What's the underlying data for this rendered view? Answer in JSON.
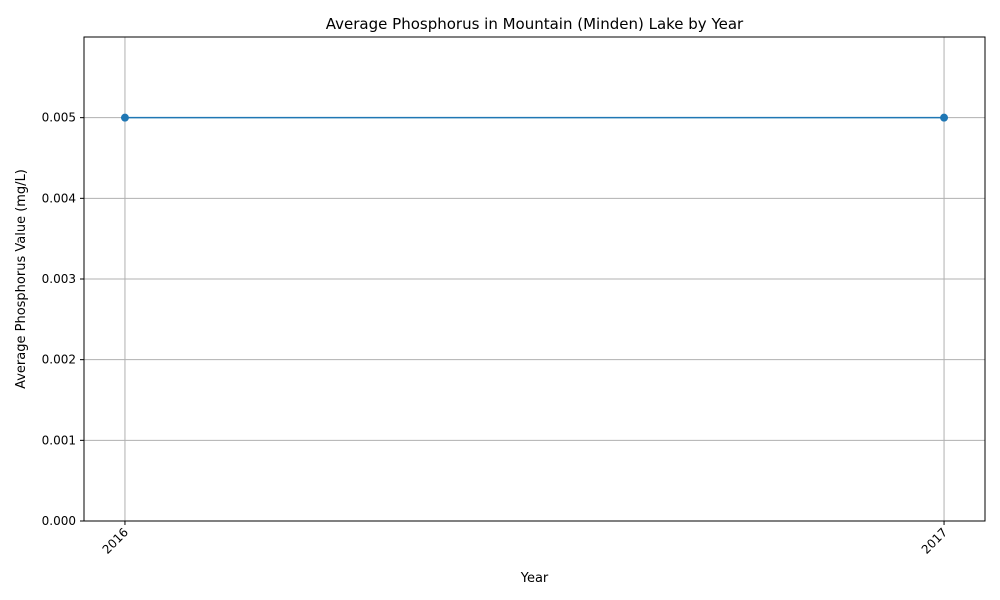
{
  "chart_data": {
    "type": "line",
    "title": "Average Phosphorus in Mountain (Minden) Lake  by Year",
    "xlabel": "Year",
    "ylabel": "Average Phosphorus Value (mg/L)",
    "categories": [
      "2016",
      "2017"
    ],
    "series": [
      {
        "values": [
          0.005,
          0.005
        ],
        "color": "#1f77b4",
        "marker": "circle"
      }
    ],
    "ylim": [
      0,
      0.006
    ],
    "yticks": [
      0.0,
      0.001,
      0.002,
      0.003,
      0.004,
      0.005
    ],
    "ytick_labels": [
      "0.000",
      "0.001",
      "0.002",
      "0.003",
      "0.004",
      "0.005"
    ],
    "grid": true,
    "legend": "none",
    "xtick_rotation": "45 degrees"
  }
}
